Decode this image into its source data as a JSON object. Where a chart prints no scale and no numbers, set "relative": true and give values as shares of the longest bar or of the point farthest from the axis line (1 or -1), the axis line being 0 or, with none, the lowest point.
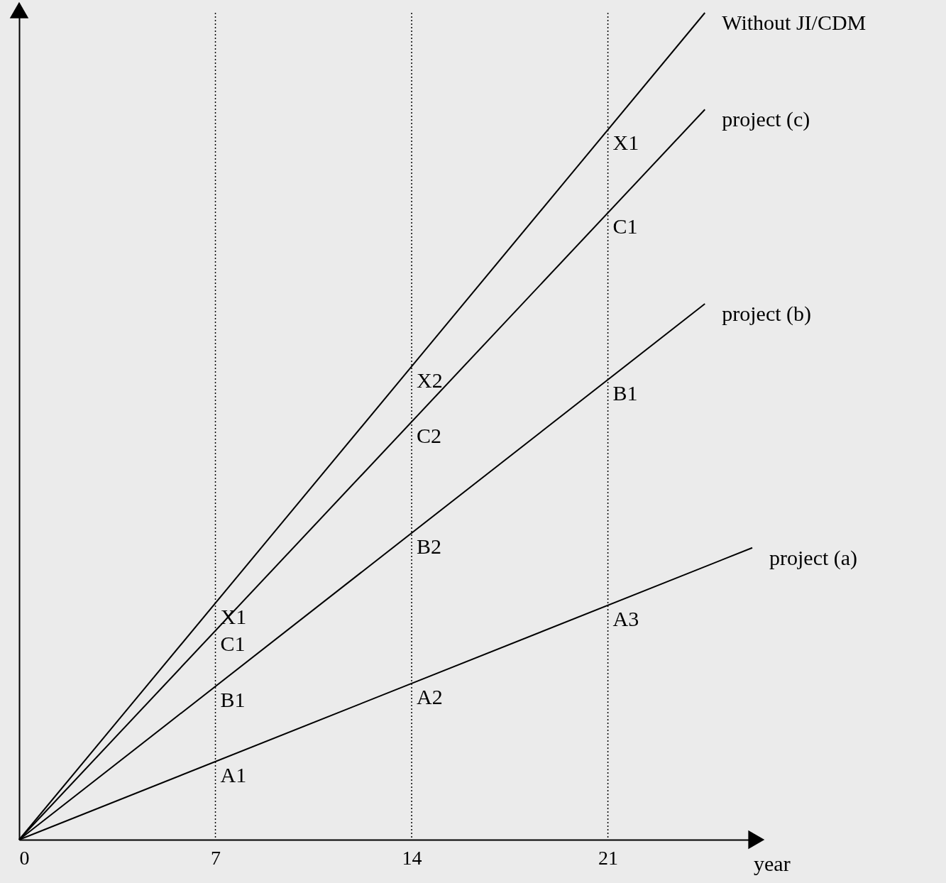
{
  "chart_data": {
    "type": "line",
    "relative": true,
    "xlabel": "year",
    "xlim": [
      0,
      26.2
    ],
    "xticks": [
      0,
      7,
      14,
      21
    ],
    "tick_labels": "x",
    "grid": false,
    "marker": "none",
    "line_style": "solid",
    "series": [
      {
        "name": "Without JI/CDM",
        "color": "#000000",
        "x": [
          0,
          24.46
        ],
        "values": [
          0,
          1
        ]
      },
      {
        "name": "project (c)",
        "color": "#000000",
        "x": [
          0,
          24.46
        ],
        "values": [
          0,
          0.883
        ]
      },
      {
        "name": "project (b)",
        "color": "#000000",
        "x": [
          0,
          24.46
        ],
        "values": [
          0,
          0.648
        ]
      },
      {
        "name": "project (a)",
        "color": "#000000",
        "x": [
          0,
          26.15
        ],
        "values": [
          0,
          0.353
        ]
      }
    ],
    "ref_lines": [
      {
        "axis": "x",
        "value": 7,
        "color": "#000000",
        "line_style": "dotted"
      },
      {
        "axis": "x",
        "value": 14,
        "color": "#000000",
        "line_style": "dotted"
      },
      {
        "axis": "x",
        "value": 21,
        "color": "#000000",
        "line_style": "dotted"
      }
    ],
    "annotations": [
      {
        "text": "X1",
        "x": 21,
        "y": 0.859
      },
      {
        "text": "X1",
        "x": 7,
        "y": 0.286
      },
      {
        "text": "X2",
        "x": 14,
        "y": 0.572
      },
      {
        "text": "C1",
        "x": 21,
        "y": 0.758
      },
      {
        "text": "C1",
        "x": 7,
        "y": 0.253
      },
      {
        "text": "C2",
        "x": 14,
        "y": 0.505
      },
      {
        "text": "B1",
        "x": 21,
        "y": 0.556
      },
      {
        "text": "B1",
        "x": 7,
        "y": 0.185
      },
      {
        "text": "B2",
        "x": 14,
        "y": 0.371
      },
      {
        "text": "A1",
        "x": 7,
        "y": 0.0945
      },
      {
        "text": "A2",
        "x": 14,
        "y": 0.189
      },
      {
        "text": "A3",
        "x": 21,
        "y": 0.2835
      }
    ]
  }
}
